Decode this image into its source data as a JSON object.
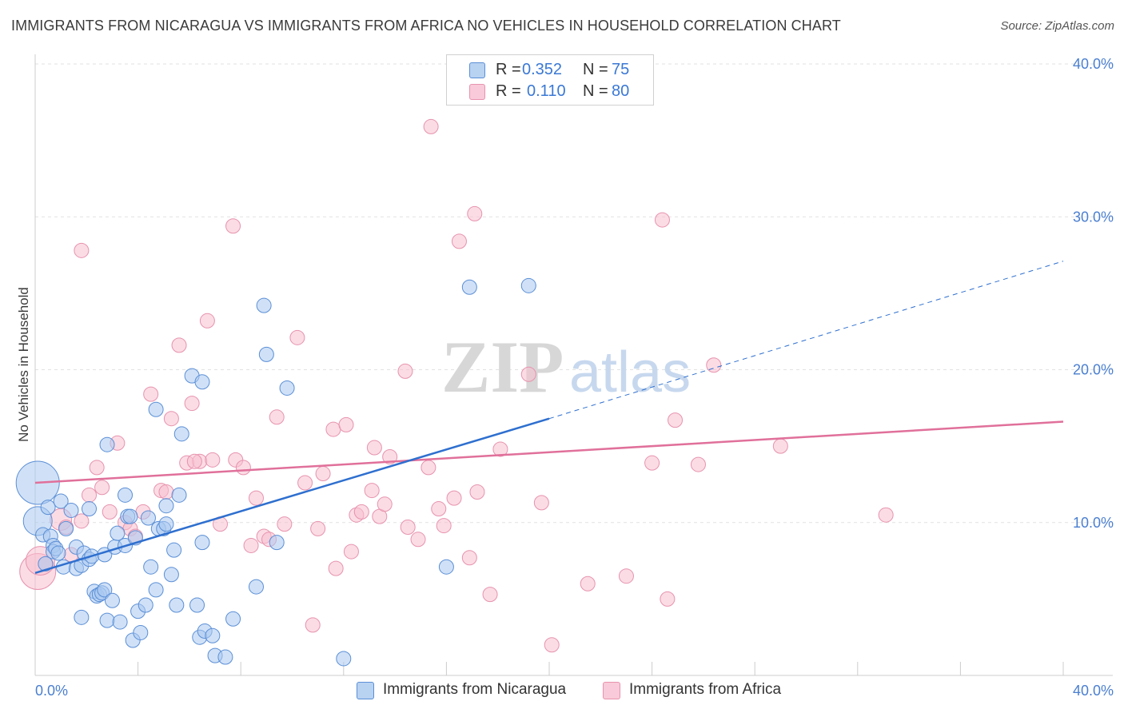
{
  "title": "IMMIGRANTS FROM NICARAGUA VS IMMIGRANTS FROM AFRICA NO VEHICLES IN HOUSEHOLD CORRELATION CHART",
  "source": "Source: ZipAtlas.com",
  "watermark": {
    "zip": "ZIP",
    "atlas": "atlas"
  },
  "legend_stats": {
    "r_label": "R =",
    "n_label": "N =",
    "series": [
      {
        "r": "0.352",
        "n": "75"
      },
      {
        "r": "0.110",
        "n": "80"
      }
    ]
  },
  "colors": {
    "nicaragua_fill": "#a9c8f0",
    "nicaragua_stroke": "#5b8fd6",
    "nicaragua_line": "#2e6fcf",
    "africa_fill": "#f7bfd0",
    "africa_stroke": "#e793ae",
    "africa_line": "#e0709a",
    "tick_text": "#4a7fd0",
    "grid": "#e2e2e2"
  },
  "chart_data": {
    "type": "scatter",
    "title": "IMMIGRANTS FROM NICARAGUA VS IMMIGRANTS FROM AFRICA NO VEHICLES IN HOUSEHOLD CORRELATION CHART",
    "xlabel": "",
    "ylabel": "No Vehicles in Household",
    "xlim": [
      0,
      40
    ],
    "ylim": [
      0,
      40
    ],
    "x_tick_labels": [
      "0.0%",
      "40.0%"
    ],
    "y_tick_labels": [
      "10.0%",
      "20.0%",
      "30.0%",
      "40.0%"
    ],
    "y_ticks": [
      10,
      20,
      30,
      40
    ],
    "grid": true,
    "legend_placement": "bottom",
    "series": [
      {
        "name": "Immigrants from Nicaragua",
        "r": 0.352,
        "n": 75,
        "trend": {
          "x": [
            0,
            20
          ],
          "y": [
            6.7,
            16.8
          ]
        },
        "trend_dashed": {
          "x": [
            20,
            40
          ],
          "y": [
            16.8,
            27.1
          ]
        },
        "points": [
          [
            0.1,
            12.6,
            3
          ],
          [
            0.1,
            10.1,
            2
          ],
          [
            0.3,
            9.2,
            1
          ],
          [
            0.4,
            7.3,
            1
          ],
          [
            0.5,
            11.0,
            1
          ],
          [
            0.6,
            9.1,
            1
          ],
          [
            0.7,
            8.5,
            1
          ],
          [
            0.7,
            8.1,
            1
          ],
          [
            0.8,
            8.3,
            1
          ],
          [
            0.9,
            8.0,
            1
          ],
          [
            1.0,
            11.4,
            1
          ],
          [
            1.1,
            7.1,
            1
          ],
          [
            1.2,
            9.6,
            1
          ],
          [
            1.4,
            10.8,
            1
          ],
          [
            1.6,
            7.0,
            1
          ],
          [
            1.6,
            8.4,
            1
          ],
          [
            1.8,
            3.8,
            1
          ],
          [
            1.8,
            7.2,
            1
          ],
          [
            1.9,
            8.0,
            1
          ],
          [
            2.1,
            10.9,
            1
          ],
          [
            2.1,
            7.6,
            1
          ],
          [
            2.2,
            7.8,
            1
          ],
          [
            2.3,
            5.5,
            1
          ],
          [
            2.4,
            5.2,
            1
          ],
          [
            2.5,
            5.3,
            1
          ],
          [
            2.6,
            5.4,
            1
          ],
          [
            2.7,
            7.9,
            1
          ],
          [
            2.7,
            5.6,
            1
          ],
          [
            2.8,
            3.6,
            1
          ],
          [
            2.8,
            15.1,
            1
          ],
          [
            3.0,
            4.9,
            1
          ],
          [
            3.1,
            8.4,
            1
          ],
          [
            3.2,
            9.3,
            1
          ],
          [
            3.3,
            3.5,
            1
          ],
          [
            3.5,
            8.5,
            1
          ],
          [
            3.5,
            11.8,
            1
          ],
          [
            3.6,
            10.4,
            1
          ],
          [
            3.7,
            10.4,
            1
          ],
          [
            3.8,
            2.3,
            1
          ],
          [
            3.9,
            9.0,
            1
          ],
          [
            4.0,
            4.2,
            1
          ],
          [
            4.1,
            2.8,
            1
          ],
          [
            4.3,
            4.6,
            1
          ],
          [
            4.4,
            10.3,
            1
          ],
          [
            4.5,
            7.1,
            1
          ],
          [
            4.7,
            5.6,
            1
          ],
          [
            4.7,
            17.4,
            1
          ],
          [
            4.8,
            9.6,
            1
          ],
          [
            5.0,
            9.6,
            1
          ],
          [
            5.1,
            11.1,
            1
          ],
          [
            5.1,
            9.9,
            1
          ],
          [
            5.3,
            6.6,
            1
          ],
          [
            5.4,
            8.2,
            1
          ],
          [
            5.5,
            4.6,
            1
          ],
          [
            5.6,
            11.8,
            1
          ],
          [
            5.7,
            15.8,
            1
          ],
          [
            6.1,
            19.6,
            1
          ],
          [
            6.3,
            4.6,
            1
          ],
          [
            6.4,
            2.5,
            1
          ],
          [
            6.5,
            8.7,
            1
          ],
          [
            6.5,
            19.2,
            1
          ],
          [
            6.6,
            2.9,
            1
          ],
          [
            6.9,
            2.6,
            1
          ],
          [
            7.0,
            1.3,
            1
          ],
          [
            7.4,
            1.2,
            1
          ],
          [
            7.7,
            3.7,
            1
          ],
          [
            8.6,
            5.8,
            1
          ],
          [
            8.9,
            24.2,
            1
          ],
          [
            9.0,
            21.0,
            1
          ],
          [
            9.4,
            8.7,
            1
          ],
          [
            9.8,
            18.8,
            1
          ],
          [
            12.0,
            1.1,
            1
          ],
          [
            16.0,
            7.1,
            1
          ],
          [
            16.9,
            25.4,
            1
          ],
          [
            19.2,
            25.5,
            1
          ]
        ]
      },
      {
        "name": "Immigrants from Africa",
        "r": 0.11,
        "n": 80,
        "trend": {
          "x": [
            0,
            40
          ],
          "y": [
            12.6,
            16.6
          ]
        },
        "points": [
          [
            0.1,
            6.8,
            2.5
          ],
          [
            0.2,
            7.5,
            2
          ],
          [
            1.0,
            10.2,
            1.5
          ],
          [
            1.2,
            9.7,
            1
          ],
          [
            1.4,
            7.9,
            1
          ],
          [
            1.8,
            10.1,
            1
          ],
          [
            1.8,
            27.8,
            1
          ],
          [
            2.1,
            11.8,
            1
          ],
          [
            2.4,
            13.6,
            1
          ],
          [
            2.6,
            12.3,
            1
          ],
          [
            2.9,
            10.7,
            1
          ],
          [
            3.2,
            15.2,
            1
          ],
          [
            3.5,
            10.0,
            1
          ],
          [
            3.7,
            9.6,
            1
          ],
          [
            3.9,
            9.1,
            1
          ],
          [
            4.2,
            10.7,
            1
          ],
          [
            4.5,
            18.4,
            1
          ],
          [
            4.9,
            12.1,
            1
          ],
          [
            5.1,
            12.0,
            1
          ],
          [
            5.3,
            16.8,
            1
          ],
          [
            5.6,
            21.6,
            1
          ],
          [
            5.9,
            13.9,
            1
          ],
          [
            6.1,
            17.8,
            1
          ],
          [
            6.4,
            14.0,
            1
          ],
          [
            6.7,
            23.2,
            1
          ],
          [
            6.9,
            14.1,
            1
          ],
          [
            7.2,
            9.9,
            1
          ],
          [
            7.7,
            29.4,
            1
          ],
          [
            7.8,
            14.1,
            1
          ],
          [
            8.1,
            13.6,
            1
          ],
          [
            8.4,
            8.5,
            1
          ],
          [
            8.6,
            11.6,
            1
          ],
          [
            8.9,
            9.1,
            1
          ],
          [
            9.1,
            8.9,
            1
          ],
          [
            9.4,
            16.9,
            1
          ],
          [
            9.7,
            9.9,
            1
          ],
          [
            10.2,
            22.1,
            1
          ],
          [
            10.5,
            12.6,
            1
          ],
          [
            10.8,
            3.3,
            1
          ],
          [
            11.0,
            9.6,
            1
          ],
          [
            11.2,
            13.2,
            1
          ],
          [
            11.6,
            16.1,
            1
          ],
          [
            11.7,
            7.0,
            1
          ],
          [
            12.1,
            16.4,
            1
          ],
          [
            12.3,
            8.1,
            1
          ],
          [
            12.5,
            10.5,
            1
          ],
          [
            12.7,
            10.7,
            1
          ],
          [
            13.1,
            12.1,
            1
          ],
          [
            13.2,
            14.9,
            1
          ],
          [
            13.4,
            10.4,
            1
          ],
          [
            13.6,
            11.2,
            1
          ],
          [
            13.8,
            14.3,
            1
          ],
          [
            14.4,
            19.9,
            1
          ],
          [
            14.5,
            9.7,
            1
          ],
          [
            14.9,
            8.9,
            1
          ],
          [
            15.3,
            13.6,
            1
          ],
          [
            15.4,
            35.9,
            1
          ],
          [
            15.7,
            10.9,
            1
          ],
          [
            15.9,
            9.8,
            1
          ],
          [
            16.3,
            11.6,
            1
          ],
          [
            16.5,
            28.4,
            1
          ],
          [
            16.9,
            7.7,
            1
          ],
          [
            17.1,
            30.2,
            1
          ],
          [
            17.2,
            12.0,
            1
          ],
          [
            17.7,
            5.3,
            1
          ],
          [
            18.1,
            14.8,
            1
          ],
          [
            19.2,
            19.7,
            1
          ],
          [
            19.7,
            11.3,
            1
          ],
          [
            20.1,
            2.0,
            1
          ],
          [
            21.5,
            6.0,
            1
          ],
          [
            23.0,
            6.5,
            1
          ],
          [
            24.0,
            13.9,
            1
          ],
          [
            24.4,
            29.8,
            1
          ],
          [
            24.6,
            5.0,
            1
          ],
          [
            24.9,
            16.7,
            1
          ],
          [
            25.8,
            13.8,
            1
          ],
          [
            26.4,
            20.3,
            1
          ],
          [
            29.0,
            15.0,
            1
          ],
          [
            33.1,
            10.5,
            1
          ],
          [
            6.2,
            14.0,
            1
          ]
        ]
      }
    ]
  }
}
